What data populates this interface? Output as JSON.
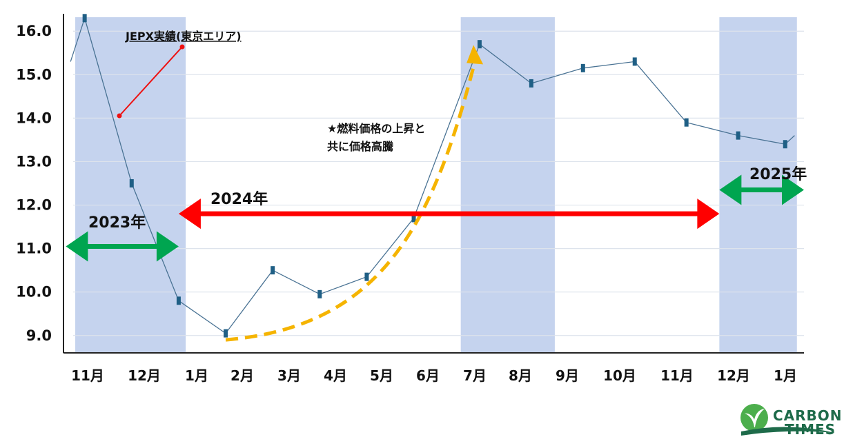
{
  "chart_data": {
    "type": "line",
    "categories": [
      "11月",
      "12月",
      "1月",
      "2月",
      "3月",
      "4月",
      "5月",
      "6月",
      "7月",
      "8月",
      "9月",
      "10月",
      "11月",
      "12月",
      "1月"
    ],
    "series": [
      {
        "name": "JEPX実績(東京エリア)",
        "color": "#4a7394",
        "points": [
          {
            "x": 10.7,
            "y": 15.3
          },
          {
            "x": 11.0,
            "y": 16.3
          },
          {
            "x": 12.0,
            "y": 12.5
          },
          {
            "x": 13.0,
            "y": 9.8
          },
          {
            "x": 14.0,
            "y": 9.05
          },
          {
            "x": 15.0,
            "y": 10.5
          },
          {
            "x": 16.0,
            "y": 9.95
          },
          {
            "x": 17.0,
            "y": 10.35
          },
          {
            "x": 18.0,
            "y": 11.7
          },
          {
            "x": 19.4,
            "y": 15.7
          },
          {
            "x": 20.5,
            "y": 14.8
          },
          {
            "x": 21.6,
            "y": 15.15
          },
          {
            "x": 22.7,
            "y": 15.3
          },
          {
            "x": 23.8,
            "y": 13.9
          },
          {
            "x": 24.9,
            "y": 13.6
          },
          {
            "x": 25.9,
            "y": 13.4
          },
          {
            "x": 26.1,
            "y": 13.6
          }
        ]
      }
    ],
    "y_ticks": [
      "16.0",
      "15.0",
      "14.0",
      "13.0",
      "12.0",
      "11.0",
      "10.0",
      "9.0"
    ],
    "ylim": [
      8.6,
      16.4
    ],
    "xlim": [
      10.55,
      26.3
    ],
    "grid": true,
    "shaded_periods": [
      [
        10.8,
        13.15
      ],
      [
        19.0,
        21.0
      ],
      [
        24.5,
        26.15
      ]
    ],
    "year_spans": [
      {
        "label": "2023年",
        "from": 10.6,
        "to": 13.0,
        "y": 11.05,
        "color": "#00a550"
      },
      {
        "label": "2024年",
        "from": 13.0,
        "to": 24.5,
        "y": 11.8,
        "color": "#ff0000"
      },
      {
        "label": "2025年",
        "from": 24.5,
        "to": 26.3,
        "y": 12.35,
        "color": "#00a550"
      }
    ],
    "legend": {
      "label": "JEPX実績(東京エリア)",
      "color": "#ee1111",
      "position": "top-left"
    },
    "annotation": {
      "lines": [
        "★燃料価格の上昇と",
        "共に価格高騰"
      ],
      "color": "#f5b400",
      "curve": [
        [
          14.0,
          8.9
        ],
        [
          17.3,
          9.2
        ],
        [
          18.4,
          11.5
        ],
        [
          19.3,
          15.3
        ]
      ]
    }
  },
  "logo": {
    "line1": "CARBON",
    "line2": "TIMES",
    "icon": "leaf-logo-icon"
  }
}
